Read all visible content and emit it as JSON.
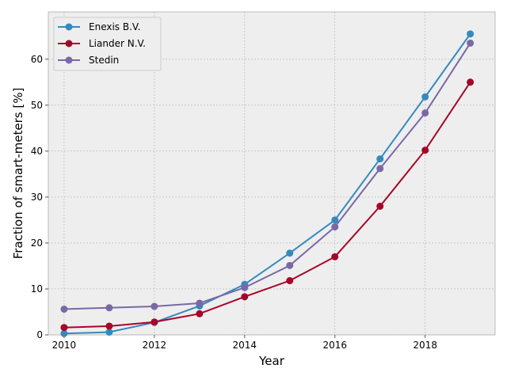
{
  "chart_data": {
    "type": "line",
    "title": "",
    "xlabel": "Year",
    "ylabel": "Fraction of smart-meters [%]",
    "xlim": [
      2009.65,
      2019.55
    ],
    "ylim": [
      0,
      70.3
    ],
    "xticks": [
      2010,
      2012,
      2014,
      2016,
      2018
    ],
    "yticks": [
      0,
      10,
      20,
      30,
      40,
      50,
      60
    ],
    "grid": true,
    "legend_position": "top-left",
    "x": [
      2010,
      2011,
      2012,
      2013,
      2014,
      2015,
      2016,
      2017,
      2018,
      2019
    ],
    "series": [
      {
        "name": "Enexis B.V.",
        "color": "#348abd",
        "values": [
          0.3,
          0.6,
          2.7,
          6.3,
          11.0,
          17.8,
          25.0,
          38.3,
          51.8,
          65.5
        ]
      },
      {
        "name": "Liander N.V.",
        "color": "#a60628",
        "values": [
          1.6,
          1.9,
          2.8,
          4.6,
          8.3,
          11.8,
          17.0,
          28.0,
          40.2,
          55.0
        ]
      },
      {
        "name": "Stedin",
        "color": "#7a68a6",
        "values": [
          5.6,
          5.9,
          6.2,
          6.9,
          10.3,
          15.1,
          23.5,
          36.2,
          48.3,
          63.5
        ]
      }
    ]
  }
}
